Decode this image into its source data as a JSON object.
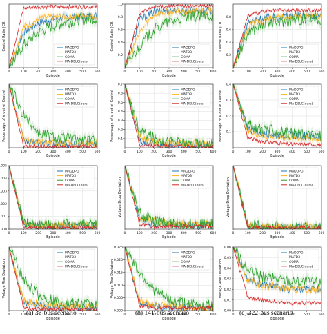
{
  "figure": {
    "legend_entries": [
      "MADDPG",
      "MATD3",
      "COMA",
      "MA-DELC(ours)"
    ],
    "series_colors": {
      "MADDPG": "#1f77b4",
      "MATD3": "#ffb21a",
      "COMA": "#2ca02c",
      "MA-DELC(ours)": "#d62728"
    },
    "captions": [
      "(a) 33-bus scenario",
      "(b) 141-bus scenario",
      "(c) 322-bus scenario"
    ]
  },
  "chart_data": [
    {
      "type": "line",
      "id": "r0c0",
      "ylabel": "Control Ratio (CR)",
      "xlabel": "Episode",
      "xticks": [
        0,
        100,
        200,
        300,
        400,
        500,
        600
      ],
      "xlim": [
        0,
        600
      ],
      "yticks": [],
      "ylim": [
        0.5,
        1.0
      ],
      "legend": "bottom-right",
      "grid": true,
      "series": [
        {
          "name": "MADDPG",
          "values": [
            0.5,
            0.78,
            0.85,
            0.88,
            0.9,
            0.9,
            0.91
          ]
        },
        {
          "name": "MATD3",
          "values": [
            0.5,
            0.82,
            0.88,
            0.9,
            0.9,
            0.91,
            0.91
          ]
        },
        {
          "name": "COMA",
          "values": [
            0.5,
            0.68,
            0.78,
            0.83,
            0.86,
            0.88,
            0.89
          ]
        },
        {
          "name": "MA-DELC(ours)",
          "values": [
            0.5,
            0.97,
            0.98,
            0.98,
            0.98,
            0.98,
            0.98
          ]
        }
      ]
    },
    {
      "type": "line",
      "id": "r0c1",
      "ylabel": "Control Ratio (CR)",
      "xlabel": "Episode",
      "xticks": [
        0,
        100,
        200,
        300,
        400,
        500,
        600
      ],
      "xlim": [
        0,
        600
      ],
      "yticks": [
        0.2,
        0.4,
        0.6,
        0.8,
        1.0
      ],
      "ylim": [
        0.0,
        1.0
      ],
      "legend": "bottom-right",
      "grid": true,
      "series": [
        {
          "name": "MADDPG",
          "values": [
            0.0,
            0.75,
            0.88,
            0.9,
            0.9,
            0.9,
            0.9
          ]
        },
        {
          "name": "MATD3",
          "values": [
            0.0,
            0.55,
            0.85,
            0.88,
            0.88,
            0.88,
            0.89
          ]
        },
        {
          "name": "COMA",
          "values": [
            0.0,
            0.35,
            0.6,
            0.72,
            0.78,
            0.8,
            0.82
          ]
        },
        {
          "name": "MA-DELC(ours)",
          "values": [
            0.0,
            0.85,
            0.96,
            0.97,
            0.97,
            0.97,
            0.97
          ]
        }
      ]
    },
    {
      "type": "line",
      "id": "r0c2",
      "ylabel": "Control Ratio (CR)",
      "xlabel": "Episode",
      "xticks": [
        0,
        100,
        200,
        300,
        400,
        500,
        600
      ],
      "xlim": [
        0,
        600
      ],
      "yticks": [
        0.2,
        0.4,
        0.6,
        0.8
      ],
      "ylim": [
        0.0,
        1.0
      ],
      "legend": "bottom-right",
      "grid": true,
      "series": [
        {
          "name": "MADDPG",
          "values": [
            0.0,
            0.7,
            0.78,
            0.8,
            0.82,
            0.82,
            0.83
          ]
        },
        {
          "name": "MATD3",
          "values": [
            0.0,
            0.65,
            0.74,
            0.78,
            0.8,
            0.8,
            0.81
          ]
        },
        {
          "name": "COMA",
          "values": [
            0.0,
            0.55,
            0.68,
            0.72,
            0.75,
            0.76,
            0.77
          ]
        },
        {
          "name": "MA-DELC(ours)",
          "values": [
            0.0,
            0.82,
            0.88,
            0.9,
            0.9,
            0.9,
            0.9
          ]
        }
      ]
    },
    {
      "type": "line",
      "id": "r1c0",
      "ylabel": "Percentage of V out of Control",
      "xlabel": "Episode",
      "xticks": [
        0,
        100,
        200,
        300,
        400,
        500,
        600
      ],
      "xlim": [
        0,
        600
      ],
      "yticks": [],
      "ylim": [
        0.0,
        0.2
      ],
      "legend": "top-right",
      "grid": true,
      "series": [
        {
          "name": "MADDPG",
          "values": [
            0.2,
            0.02,
            0.015,
            0.012,
            0.01,
            0.01,
            0.01
          ]
        },
        {
          "name": "MATD3",
          "values": [
            0.2,
            0.025,
            0.018,
            0.015,
            0.013,
            0.012,
            0.012
          ]
        },
        {
          "name": "COMA",
          "values": [
            0.2,
            0.1,
            0.05,
            0.035,
            0.03,
            0.025,
            0.02
          ]
        },
        {
          "name": "MA-DELC(ours)",
          "values": [
            0.2,
            0.005,
            0.004,
            0.003,
            0.003,
            0.003,
            0.003
          ]
        }
      ]
    },
    {
      "type": "line",
      "id": "r1c1",
      "ylabel": "Percentage of V out of Control",
      "xlabel": "Episode",
      "xticks": [
        0,
        100,
        200,
        300,
        400,
        500,
        600
      ],
      "xlim": [
        0,
        600
      ],
      "yticks": [
        0.1,
        0.2,
        0.3,
        0.4,
        0.5,
        0.6,
        0.7
      ],
      "ylim": [
        0.0,
        0.7
      ],
      "legend": "top-right",
      "grid": true,
      "series": [
        {
          "name": "MADDPG",
          "values": [
            0.7,
            0.08,
            0.04,
            0.03,
            0.02,
            0.02,
            0.02
          ]
        },
        {
          "name": "MATD3",
          "values": [
            0.7,
            0.12,
            0.06,
            0.05,
            0.04,
            0.04,
            0.035
          ]
        },
        {
          "name": "COMA",
          "values": [
            0.7,
            0.18,
            0.1,
            0.07,
            0.05,
            0.04,
            0.03
          ]
        },
        {
          "name": "MA-DELC(ours)",
          "values": [
            0.7,
            0.03,
            0.02,
            0.015,
            0.01,
            0.01,
            0.01
          ]
        }
      ]
    },
    {
      "type": "line",
      "id": "r1c2",
      "ylabel": "Percentage of V out of Control",
      "xlabel": "Episode",
      "xticks": [
        0,
        100,
        200,
        300,
        400,
        500,
        600
      ],
      "xlim": [
        0,
        600
      ],
      "yticks": [
        0.1,
        0.2,
        0.3,
        0.4
      ],
      "ylim": [
        0.0,
        0.4
      ],
      "legend": "top-right",
      "grid": true,
      "series": [
        {
          "name": "MADDPG",
          "values": [
            0.4,
            0.12,
            0.09,
            0.08,
            0.08,
            0.07,
            0.07
          ]
        },
        {
          "name": "MATD3",
          "values": [
            0.4,
            0.1,
            0.08,
            0.07,
            0.07,
            0.06,
            0.06
          ]
        },
        {
          "name": "COMA",
          "values": [
            0.4,
            0.14,
            0.12,
            0.1,
            0.09,
            0.08,
            0.07
          ]
        },
        {
          "name": "MA-DELC(ours)",
          "values": [
            0.4,
            0.06,
            0.04,
            0.03,
            0.02,
            0.02,
            0.02
          ]
        }
      ]
    },
    {
      "type": "line",
      "id": "r2c0",
      "ylabel": "Voltage Drop Deviation",
      "xlabel": "Episode",
      "xticks": [
        0,
        100,
        200,
        300,
        400,
        500,
        600
      ],
      "xlim": [
        0,
        600
      ],
      "yticks": [
        0.0,
        0.001,
        0.002,
        0.003,
        0.004,
        0.005
      ],
      "ylim": [
        0.0,
        0.005
      ],
      "legend": "top-right",
      "grid": true,
      "series": [
        {
          "name": "MADDPG",
          "values": [
            0.005,
            0.0003,
            0.0002,
            0.0002,
            0.0002,
            0.0002,
            0.0002
          ]
        },
        {
          "name": "MATD3",
          "values": [
            0.005,
            0.0004,
            0.0003,
            0.0003,
            0.0003,
            0.0003,
            0.0003
          ]
        },
        {
          "name": "COMA",
          "values": [
            0.005,
            0.0005,
            0.0004,
            0.0003,
            0.0003,
            0.0003,
            0.0003
          ]
        },
        {
          "name": "MA-DELC(ours)",
          "values": [
            0.005,
            0.0001,
            0.0001,
            0.0001,
            0.0001,
            0.0001,
            0.0001
          ]
        }
      ]
    },
    {
      "type": "line",
      "id": "r2c1",
      "ylabel": "Voltage Drop Deviation",
      "xlabel": "Episode",
      "xticks": [
        0,
        100,
        200,
        300,
        400,
        500,
        600
      ],
      "xlim": [
        0,
        600
      ],
      "yticks": [],
      "ylim": [
        0.0,
        0.05
      ],
      "legend": "top-right",
      "grid": true,
      "series": [
        {
          "name": "MADDPG",
          "values": [
            0.05,
            0.008,
            0.004,
            0.003,
            0.003,
            0.003,
            0.003
          ]
        },
        {
          "name": "MATD3",
          "values": [
            0.05,
            0.01,
            0.006,
            0.005,
            0.005,
            0.004,
            0.004
          ]
        },
        {
          "name": "COMA",
          "values": [
            0.05,
            0.012,
            0.006,
            0.005,
            0.004,
            0.004,
            0.004
          ]
        },
        {
          "name": "MA-DELC(ours)",
          "values": [
            0.05,
            0.004,
            0.002,
            0.002,
            0.002,
            0.002,
            0.002
          ]
        }
      ]
    },
    {
      "type": "line",
      "id": "r2c2",
      "ylabel": "Voltage Drop Deviation",
      "xlabel": "Episode",
      "xticks": [
        0,
        100,
        200,
        300,
        400,
        500,
        600
      ],
      "xlim": [
        0,
        600
      ],
      "yticks": [],
      "ylim": [
        0.0,
        0.05
      ],
      "legend": "top-right",
      "grid": true,
      "series": [
        {
          "name": "MADDPG",
          "values": [
            0.05,
            0.002,
            0.001,
            0.001,
            0.001,
            0.001,
            0.001
          ]
        },
        {
          "name": "MATD3",
          "values": [
            0.05,
            0.003,
            0.002,
            0.002,
            0.002,
            0.002,
            0.002
          ]
        },
        {
          "name": "COMA",
          "values": [
            0.05,
            0.003,
            0.002,
            0.002,
            0.001,
            0.001,
            0.001
          ]
        },
        {
          "name": "MA-DELC(ours)",
          "values": [
            0.05,
            0.001,
            0.001,
            0.001,
            0.001,
            0.001,
            0.001
          ]
        }
      ]
    },
    {
      "type": "line",
      "id": "r3c0",
      "ylabel": "Voltage Rise Deviation",
      "xlabel": "Episode",
      "xticks": [
        0,
        100,
        200,
        300,
        400,
        500,
        600
      ],
      "xlim": [
        0,
        600
      ],
      "yticks": [],
      "ylim": [
        0.0,
        0.25
      ],
      "legend": "top-right",
      "grid": true,
      "series": [
        {
          "name": "MADDPG",
          "values": [
            0.25,
            0.03,
            0.02,
            0.015,
            0.01,
            0.01,
            0.01
          ]
        },
        {
          "name": "MATD3",
          "values": [
            0.25,
            0.04,
            0.025,
            0.02,
            0.015,
            0.012,
            0.012
          ]
        },
        {
          "name": "COMA",
          "values": [
            0.25,
            0.12,
            0.06,
            0.04,
            0.03,
            0.025,
            0.02
          ]
        },
        {
          "name": "MA-DELC(ours)",
          "values": [
            0.25,
            0.01,
            0.005,
            0.005,
            0.004,
            0.004,
            0.004
          ]
        }
      ]
    },
    {
      "type": "line",
      "id": "r3c1",
      "ylabel": "Voltage Rise Deviation",
      "xlabel": "Episode",
      "xticks": [
        0,
        100,
        200,
        300,
        400,
        500,
        600
      ],
      "xlim": [
        0,
        600
      ],
      "yticks": [
        0.0,
        0.005,
        0.01,
        0.015,
        0.02,
        0.025
      ],
      "ylim": [
        0.0,
        0.025
      ],
      "legend": "top-right",
      "grid": true,
      "series": [
        {
          "name": "MADDPG",
          "values": [
            0.025,
            0.003,
            0.002,
            0.001,
            0.001,
            0.001,
            0.001
          ]
        },
        {
          "name": "MATD3",
          "values": [
            0.025,
            0.004,
            0.002,
            0.002,
            0.001,
            0.001,
            0.001
          ]
        },
        {
          "name": "COMA",
          "values": [
            0.025,
            0.015,
            0.008,
            0.004,
            0.003,
            0.002,
            0.002
          ]
        },
        {
          "name": "MA-DELC(ours)",
          "values": [
            0.025,
            0.002,
            0.001,
            0.001,
            0.001,
            0.001,
            0.001
          ]
        }
      ]
    },
    {
      "type": "line",
      "id": "r3c2",
      "ylabel": "Voltage Rise Deviation",
      "xlabel": "Episode",
      "xticks": [
        0,
        100,
        200,
        300,
        400,
        500,
        600
      ],
      "xlim": [
        0,
        600
      ],
      "yticks": [
        0.0,
        0.01,
        0.02,
        0.03,
        0.04,
        0.05,
        0.06
      ],
      "ylim": [
        0.0,
        0.06
      ],
      "legend": "top-right",
      "grid": true,
      "series": [
        {
          "name": "MADDPG",
          "values": [
            0.06,
            0.03,
            0.025,
            0.022,
            0.02,
            0.02,
            0.02
          ]
        },
        {
          "name": "MATD3",
          "values": [
            0.06,
            0.028,
            0.024,
            0.022,
            0.02,
            0.02,
            0.02
          ]
        },
        {
          "name": "COMA",
          "values": [
            0.06,
            0.038,
            0.032,
            0.03,
            0.028,
            0.027,
            0.026
          ]
        },
        {
          "name": "MA-DELC(ours)",
          "values": [
            0.06,
            0.012,
            0.01,
            0.008,
            0.007,
            0.007,
            0.007
          ]
        }
      ]
    }
  ]
}
